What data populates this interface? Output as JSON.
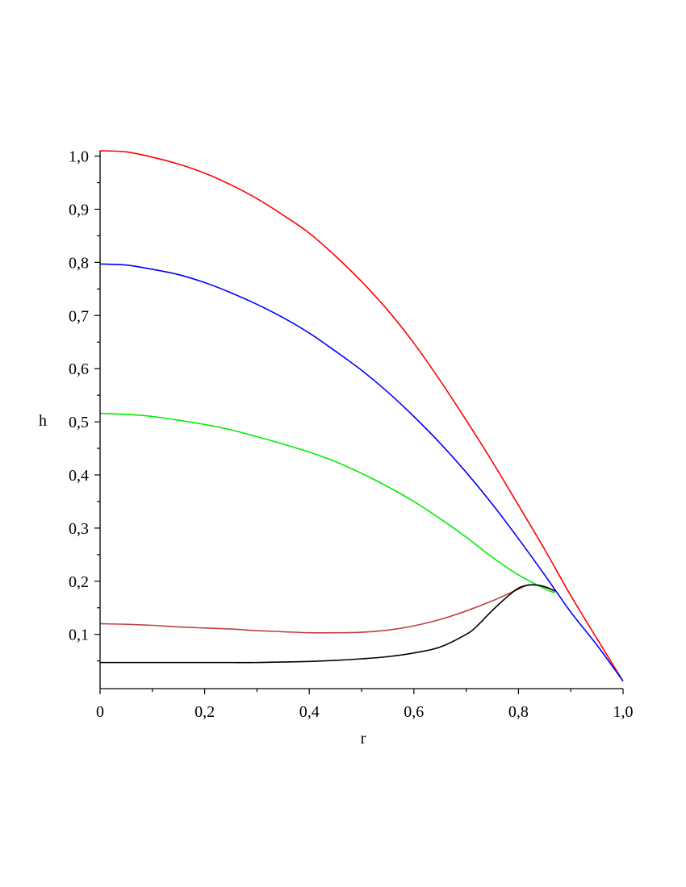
{
  "chart_data": {
    "type": "line",
    "xlabel": "r",
    "ylabel": "h",
    "xlim": [
      0,
      1.0
    ],
    "ylim": [
      0.01,
      1.01
    ],
    "grid": false,
    "x_ticks": [
      {
        "value": 0,
        "label": "0"
      },
      {
        "value": 0.2,
        "label": "0,2"
      },
      {
        "value": 0.4,
        "label": "0,4"
      },
      {
        "value": 0.6,
        "label": "0,6"
      },
      {
        "value": 0.8,
        "label": "0,8"
      },
      {
        "value": 1.0,
        "label": "1,0"
      }
    ],
    "y_ticks": [
      {
        "value": 0.1,
        "label": "0,1"
      },
      {
        "value": 0.2,
        "label": "0,2"
      },
      {
        "value": 0.3,
        "label": "0,3"
      },
      {
        "value": 0.4,
        "label": "0,4"
      },
      {
        "value": 0.5,
        "label": "0,5"
      },
      {
        "value": 0.6,
        "label": "0,6"
      },
      {
        "value": 0.7,
        "label": "0,7"
      },
      {
        "value": 0.8,
        "label": "0,8"
      },
      {
        "value": 0.9,
        "label": "0,9"
      },
      {
        "value": 1.0,
        "label": "1,0"
      }
    ],
    "series": [
      {
        "color": "#ff0000",
        "x": [
          0,
          0.05,
          0.1,
          0.15,
          0.2,
          0.25,
          0.3,
          0.35,
          0.4,
          0.45,
          0.5,
          0.55,
          0.6,
          0.65,
          0.7,
          0.75,
          0.8,
          0.85,
          0.9,
          0.95,
          1.0
        ],
        "y": [
          1.01,
          1.008,
          0.998,
          0.985,
          0.968,
          0.946,
          0.92,
          0.889,
          0.855,
          0.812,
          0.764,
          0.71,
          0.648,
          0.578,
          0.503,
          0.425,
          0.343,
          0.26,
          0.173,
          0.092,
          0.012
        ]
      },
      {
        "color": "#0000ff",
        "x": [
          0,
          0.05,
          0.1,
          0.15,
          0.2,
          0.25,
          0.3,
          0.35,
          0.4,
          0.45,
          0.5,
          0.55,
          0.6,
          0.65,
          0.7,
          0.75,
          0.8,
          0.85,
          0.9,
          0.95,
          1.0
        ],
        "y": [
          0.797,
          0.795,
          0.787,
          0.777,
          0.762,
          0.743,
          0.721,
          0.696,
          0.667,
          0.633,
          0.597,
          0.556,
          0.51,
          0.46,
          0.405,
          0.345,
          0.28,
          0.212,
          0.142,
          0.08,
          0.012
        ]
      },
      {
        "color": "#00ee00",
        "x": [
          0,
          0.05,
          0.1,
          0.15,
          0.2,
          0.25,
          0.3,
          0.35,
          0.4,
          0.45,
          0.5,
          0.55,
          0.6,
          0.65,
          0.7,
          0.75,
          0.8,
          0.85,
          0.87
        ],
        "y": [
          0.516,
          0.514,
          0.51,
          0.503,
          0.495,
          0.485,
          0.472,
          0.458,
          0.443,
          0.425,
          0.403,
          0.378,
          0.35,
          0.318,
          0.283,
          0.245,
          0.212,
          0.186,
          0.178
        ]
      },
      {
        "color": "#c04040",
        "x": [
          0,
          0.05,
          0.1,
          0.15,
          0.2,
          0.25,
          0.3,
          0.35,
          0.4,
          0.45,
          0.5,
          0.55,
          0.6,
          0.65,
          0.7,
          0.75,
          0.8,
          0.82,
          0.85,
          0.87
        ],
        "y": [
          0.12,
          0.119,
          0.117,
          0.114,
          0.112,
          0.11,
          0.107,
          0.105,
          0.103,
          0.103,
          0.104,
          0.108,
          0.116,
          0.128,
          0.144,
          0.163,
          0.185,
          0.193,
          0.19,
          0.181
        ]
      },
      {
        "color": "#000000",
        "x": [
          0,
          0.05,
          0.1,
          0.15,
          0.2,
          0.25,
          0.3,
          0.35,
          0.4,
          0.45,
          0.5,
          0.55,
          0.6,
          0.65,
          0.7,
          0.72,
          0.75,
          0.78,
          0.8,
          0.82,
          0.84,
          0.86,
          0.87
        ],
        "y": [
          0.047,
          0.047,
          0.047,
          0.047,
          0.047,
          0.047,
          0.047,
          0.048,
          0.049,
          0.051,
          0.054,
          0.058,
          0.065,
          0.076,
          0.1,
          0.115,
          0.145,
          0.172,
          0.187,
          0.193,
          0.192,
          0.186,
          0.181
        ]
      }
    ]
  }
}
